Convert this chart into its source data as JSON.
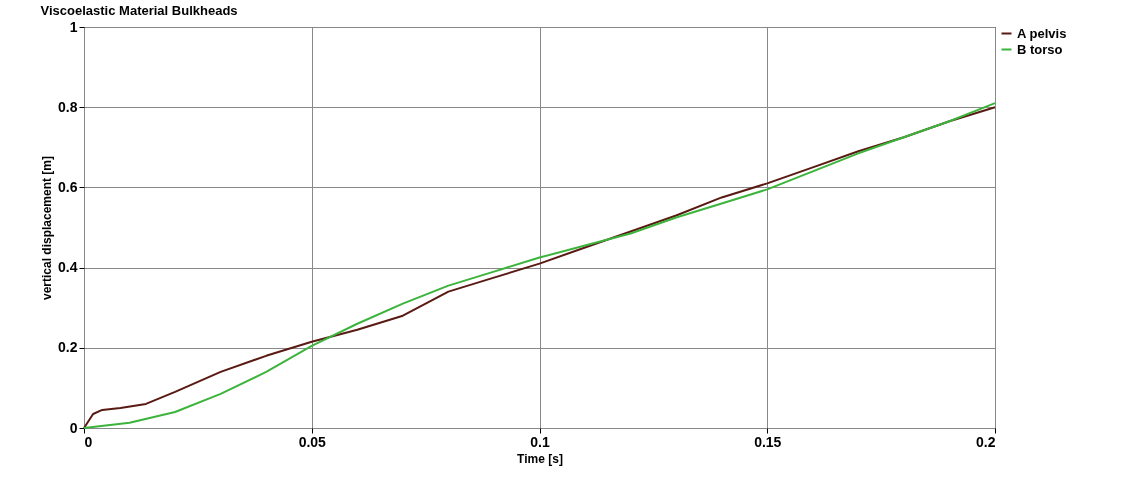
{
  "chart_data": {
    "type": "line",
    "title": "Viscoelastic Material Bulkheads",
    "xlabel": "Time [s]",
    "ylabel": "vertical displacement [m]",
    "xlim": [
      0,
      0.2
    ],
    "ylim": [
      0,
      1
    ],
    "xticks": [
      0,
      0.05,
      0.1,
      0.15,
      0.2
    ],
    "yticks": [
      0,
      0.2,
      0.4,
      0.6,
      0.8,
      1
    ],
    "grid": true,
    "legend": "top right",
    "series": [
      {
        "name": "A  pelvis",
        "color": "#5a1a14",
        "x": [
          0,
          0.002,
          0.004,
          0.008,
          0.0136,
          0.02,
          0.03,
          0.04,
          0.05,
          0.06,
          0.07,
          0.08,
          0.09,
          0.1,
          0.11,
          0.12,
          0.13,
          0.14,
          0.15,
          0.16,
          0.17,
          0.18,
          0.19,
          0.2
        ],
        "values": [
          0,
          0.035,
          0.045,
          0.05,
          0.06,
          0.09,
          0.14,
          0.18,
          0.215,
          0.245,
          0.28,
          0.34,
          0.375,
          0.41,
          0.45,
          0.49,
          0.53,
          0.575,
          0.61,
          0.65,
          0.69,
          0.725,
          0.765,
          0.8
        ]
      },
      {
        "name": "B  torso",
        "color": "#3cb43c",
        "x": [
          0,
          0.01,
          0.02,
          0.03,
          0.04,
          0.05,
          0.06,
          0.07,
          0.08,
          0.09,
          0.1,
          0.11,
          0.12,
          0.13,
          0.14,
          0.15,
          0.16,
          0.17,
          0.18,
          0.19,
          0.2
        ],
        "values": [
          0,
          0.013,
          0.04,
          0.085,
          0.14,
          0.205,
          0.26,
          0.31,
          0.355,
          0.39,
          0.425,
          0.455,
          0.485,
          0.525,
          0.56,
          0.595,
          0.64,
          0.685,
          0.725,
          0.765,
          0.81
        ]
      }
    ]
  }
}
